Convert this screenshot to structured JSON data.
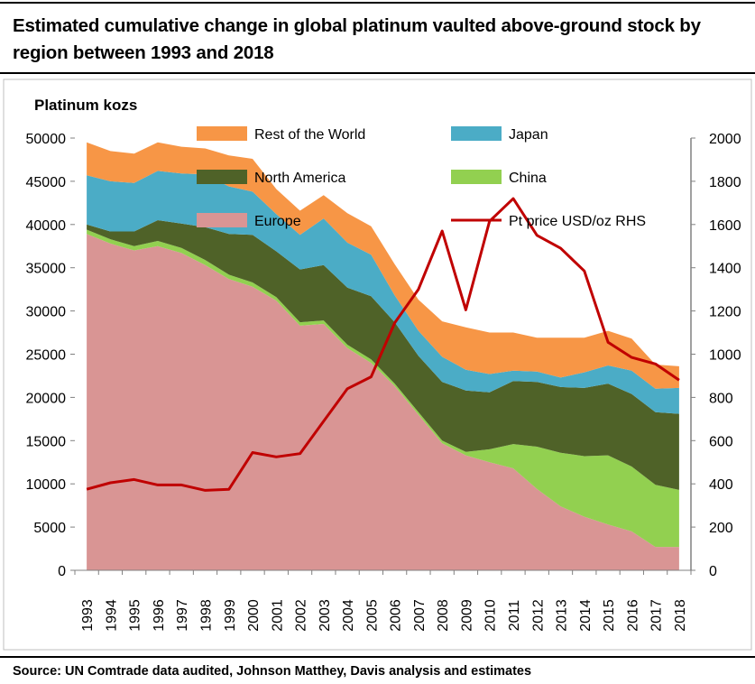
{
  "title": "Estimated cumulative change in global platinum vaulted above-ground stock by region between 1993 and 2018",
  "source": "Source: UN Comtrade data audited, Johnson Matthey, Davis analysis and estimates",
  "chart_data": {
    "type": "area",
    "stacked": true,
    "ylabel": "Platinum kozs",
    "ylim": [
      0,
      50000
    ],
    "y_ticks": [
      0,
      5000,
      10000,
      15000,
      20000,
      25000,
      30000,
      35000,
      40000,
      45000,
      50000
    ],
    "y2lim": [
      0,
      2000
    ],
    "y2_ticks": [
      0,
      200,
      400,
      600,
      800,
      1000,
      1200,
      1400,
      1600,
      1800,
      2000
    ],
    "x": [
      "1993",
      "1994",
      "1995",
      "1996",
      "1997",
      "1998",
      "1999",
      "2000",
      "2001",
      "2002",
      "2003",
      "2004",
      "2005",
      "2006",
      "2007",
      "2008",
      "2009",
      "2010",
      "2011",
      "2012",
      "2013",
      "2014",
      "2015",
      "2016",
      "2017",
      "2018"
    ],
    "legend_placement": "top, inside plot, two columns",
    "series": [
      {
        "name": "Europe",
        "color": "#d99594",
        "values": [
          38900,
          37800,
          37000,
          37500,
          36700,
          35300,
          33700,
          32800,
          31200,
          28300,
          28500,
          25700,
          24000,
          21300,
          18000,
          14700,
          13300,
          12500,
          11800,
          9400,
          7400,
          6200,
          5300,
          4500,
          2700,
          2700
        ]
      },
      {
        "name": "China",
        "color": "#92d050",
        "values": [
          500,
          500,
          500,
          600,
          600,
          600,
          500,
          500,
          400,
          400,
          400,
          400,
          400,
          300,
          300,
          300,
          400,
          1500,
          2800,
          4900,
          6200,
          7000,
          8000,
          7500,
          7200,
          6600
        ]
      },
      {
        "name": "North America",
        "color": "#4f6228",
        "values": [
          600,
          900,
          1700,
          2400,
          2800,
          3800,
          4700,
          5500,
          5300,
          6100,
          6400,
          6600,
          7300,
          7100,
          6500,
          6800,
          7100,
          6600,
          7300,
          7500,
          7600,
          7900,
          8300,
          8400,
          8400,
          8800
        ]
      },
      {
        "name": "Japan",
        "color": "#4bacc6",
        "values": [
          5700,
          5800,
          5600,
          5700,
          5800,
          6100,
          5500,
          5000,
          4300,
          4000,
          5400,
          5200,
          4800,
          3100,
          2900,
          2900,
          2400,
          2100,
          1200,
          1200,
          1100,
          1800,
          2100,
          2700,
          2700,
          3000
        ]
      },
      {
        "name": "Rest of the World",
        "color": "#f79646",
        "values": [
          3800,
          3500,
          3400,
          3300,
          3100,
          3000,
          3600,
          3800,
          2900,
          2800,
          2700,
          3400,
          3300,
          3600,
          3600,
          4100,
          4900,
          4800,
          4400,
          3900,
          4600,
          4000,
          4000,
          3700,
          2800,
          2500
        ]
      }
    ],
    "line_series": {
      "name": "Pt price USD/oz RHS",
      "color": "#c00000",
      "axis": "right",
      "values": [
        375,
        405,
        420,
        395,
        395,
        370,
        375,
        545,
        525,
        540,
        690,
        840,
        895,
        1145,
        1300,
        1570,
        1205,
        1615,
        1720,
        1550,
        1490,
        1385,
        1055,
        985,
        955,
        880
      ]
    }
  }
}
